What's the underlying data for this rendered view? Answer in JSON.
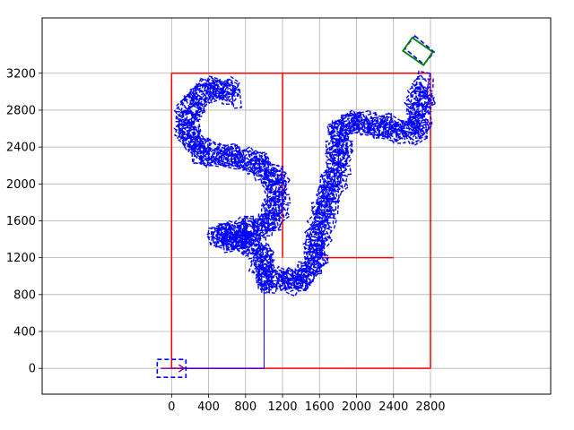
{
  "chart_data": {
    "type": "line",
    "title": "",
    "xlabel": "",
    "ylabel": "",
    "xlim": [
      -1400,
      4100
    ],
    "ylim": [
      -280,
      3800
    ],
    "grid": true,
    "x_ticks": [
      0,
      400,
      800,
      1200,
      1600,
      2000,
      2400,
      2800
    ],
    "y_ticks": [
      0,
      400,
      800,
      1200,
      1600,
      2000,
      2400,
      2800,
      3200
    ],
    "colors": {
      "boundary": "#ff0000",
      "path": "#0000ff",
      "goal": "#008000",
      "grid": "#b0b0b0"
    },
    "boundary_segments": [
      {
        "x": [
          0,
          2800
        ],
        "y": [
          0,
          0
        ]
      },
      {
        "x": [
          2800,
          2800
        ],
        "y": [
          0,
          3200
        ]
      },
      {
        "x": [
          2800,
          0
        ],
        "y": [
          3200,
          3200
        ]
      },
      {
        "x": [
          0,
          0
        ],
        "y": [
          3200,
          0
        ]
      },
      {
        "x": [
          1200,
          1200
        ],
        "y": [
          3200,
          1200
        ]
      },
      {
        "x": [
          1600,
          2400
        ],
        "y": [
          1200,
          1200
        ]
      }
    ],
    "path_waypoints": {
      "x": [
        0,
        1000,
        1000,
        1150,
        1300,
        1450,
        1550,
        1600,
        1700,
        1800,
        1820,
        1900,
        2100,
        2400,
        2650,
        2680,
        2700
      ],
      "y": [
        0,
        0,
        950,
        950,
        950,
        950,
        1200,
        1500,
        1900,
        2150,
        2600,
        2650,
        2650,
        2600,
        2550,
        2900,
        3100
      ]
    },
    "path_tube": {
      "x": [
        1000,
        1150,
        1300,
        1450,
        1550,
        1600,
        1700,
        1800,
        1820,
        1900,
        2100,
        2400,
        2650,
        2680,
        2700
      ],
      "y": [
        950,
        950,
        950,
        950,
        1200,
        1500,
        1900,
        2150,
        2600,
        2650,
        2650,
        2600,
        2550,
        2900,
        3100
      ]
    },
    "path_tube_left": {
      "x": [
        1000,
        1000,
        900,
        600,
        500,
        800,
        1050,
        1150,
        1100,
        850,
        600,
        300,
        150,
        200,
        350,
        550,
        700
      ],
      "y": [
        950,
        1150,
        1350,
        1400,
        1450,
        1500,
        1550,
        1800,
        2100,
        2250,
        2300,
        2350,
        2550,
        2850,
        3000,
        3050,
        2950
      ]
    },
    "start_marker": {
      "x": 0,
      "y": 0,
      "heading_deg": 0
    },
    "goal_marker": {
      "x": 2680,
      "y": 3450,
      "heading_deg": -40
    }
  }
}
